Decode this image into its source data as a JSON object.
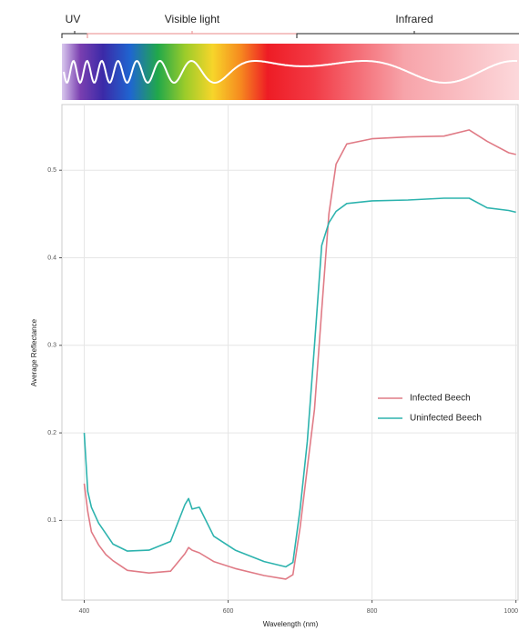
{
  "chart_data": {
    "type": "line",
    "annotations": [
      "UV",
      "Visible light",
      "Infrared"
    ],
    "x_label": "Wavelength (nm)",
    "y_label": "Average Reflectance",
    "x": [
      400,
      405,
      410,
      420,
      430,
      440,
      460,
      490,
      520,
      540,
      545,
      550,
      560,
      580,
      610,
      650,
      680,
      690,
      700,
      710,
      720,
      730,
      740,
      750,
      765,
      800,
      850,
      900,
      935,
      960,
      990,
      1000
    ],
    "series": [
      {
        "name": "Infected Beech",
        "color": "#e07b86",
        "values": [
          0.142,
          0.11,
          0.087,
          0.072,
          0.061,
          0.054,
          0.043,
          0.04,
          0.042,
          0.062,
          0.069,
          0.066,
          0.063,
          0.053,
          0.045,
          0.037,
          0.033,
          0.038,
          0.092,
          0.16,
          0.227,
          0.34,
          0.45,
          0.507,
          0.53,
          0.536,
          0.538,
          0.539,
          0.546,
          0.533,
          0.52,
          0.518
        ]
      },
      {
        "name": "Uninfected Beech",
        "color": "#2db3ae",
        "values": [
          0.2,
          0.133,
          0.115,
          0.097,
          0.085,
          0.073,
          0.065,
          0.066,
          0.076,
          0.118,
          0.125,
          0.113,
          0.115,
          0.082,
          0.066,
          0.053,
          0.047,
          0.052,
          0.113,
          0.19,
          0.3,
          0.414,
          0.44,
          0.453,
          0.462,
          0.465,
          0.466,
          0.468,
          0.468,
          0.457,
          0.454,
          0.452
        ]
      }
    ],
    "xlim": [
      369,
      1003
    ],
    "ylim": [
      0.009,
      0.575
    ],
    "xticks": [
      400,
      600,
      800,
      1000
    ],
    "yticks": [
      0.1,
      0.2,
      0.3,
      0.4,
      0.5
    ],
    "grid": true,
    "legend": "right"
  }
}
